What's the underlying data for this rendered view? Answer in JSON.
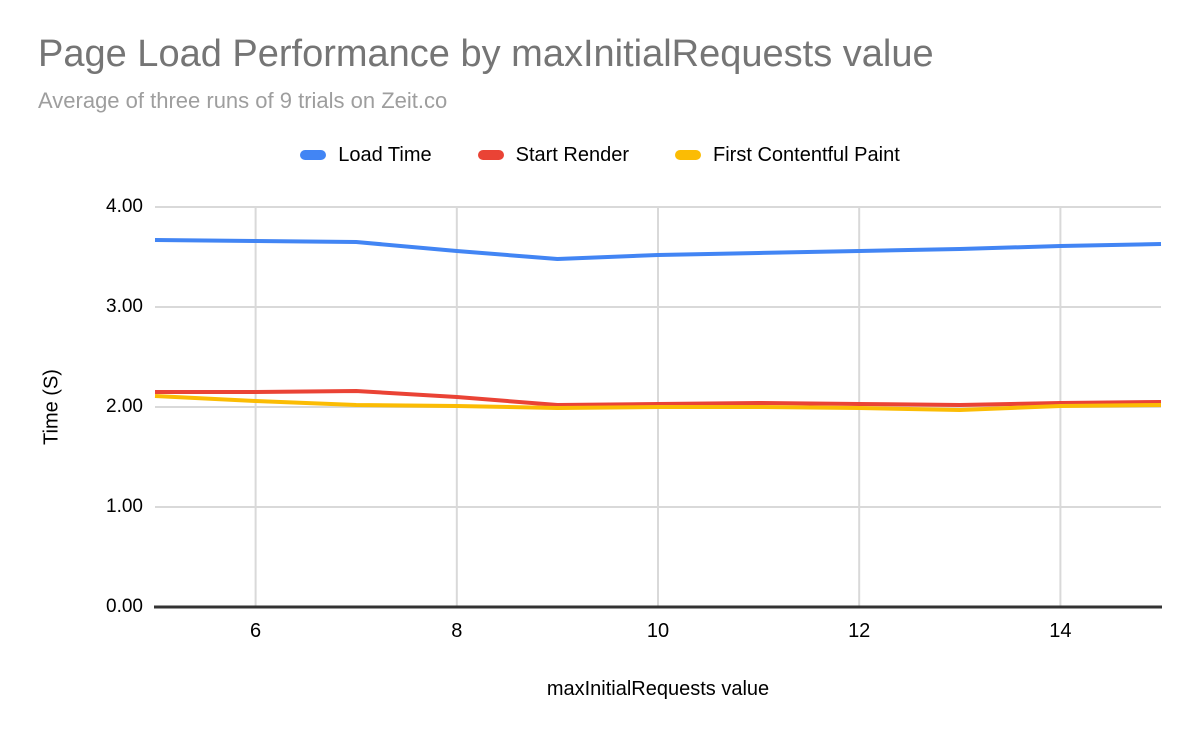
{
  "colors": {
    "title_text": "#757575",
    "subtitle_text": "#9e9e9e",
    "label_text": "#000000",
    "grid": "#d9d9d9",
    "axis": "#333333",
    "series_blue": "#4285f4",
    "series_red": "#ea4335",
    "series_yellow": "#fbbc04"
  },
  "chart_data": {
    "type": "line",
    "title": "Page Load Performance by maxInitialRequests value",
    "subtitle": "Average of three runs of 9 trials on Zeit.co",
    "xlabel": "maxInitialRequests value",
    "ylabel": "Time (S)",
    "x": [
      5,
      6,
      7,
      8,
      9,
      10,
      11,
      12,
      13,
      14,
      15
    ],
    "series": [
      {
        "name": "Load Time",
        "color": "#4285f4",
        "values": [
          3.67,
          3.66,
          3.65,
          3.56,
          3.48,
          3.52,
          3.54,
          3.56,
          3.58,
          3.61,
          3.63
        ]
      },
      {
        "name": "Start Render",
        "color": "#ea4335",
        "values": [
          2.15,
          2.15,
          2.16,
          2.1,
          2.02,
          2.03,
          2.04,
          2.03,
          2.02,
          2.04,
          2.05
        ]
      },
      {
        "name": "First Contentful Paint",
        "color": "#fbbc04",
        "values": [
          2.11,
          2.06,
          2.02,
          2.01,
          1.99,
          2.0,
          2.0,
          1.99,
          1.97,
          2.01,
          2.02
        ]
      }
    ],
    "xlim": [
      5,
      15
    ],
    "ylim": [
      0,
      4
    ],
    "x_ticks": [
      6,
      8,
      10,
      12,
      14
    ],
    "y_ticks": [
      0,
      1,
      2,
      3,
      4
    ],
    "y_tick_labels": [
      "0.00",
      "1.00",
      "2.00",
      "3.00",
      "4.00"
    ],
    "grid": true,
    "legend_position": "top",
    "line_width": 4
  }
}
